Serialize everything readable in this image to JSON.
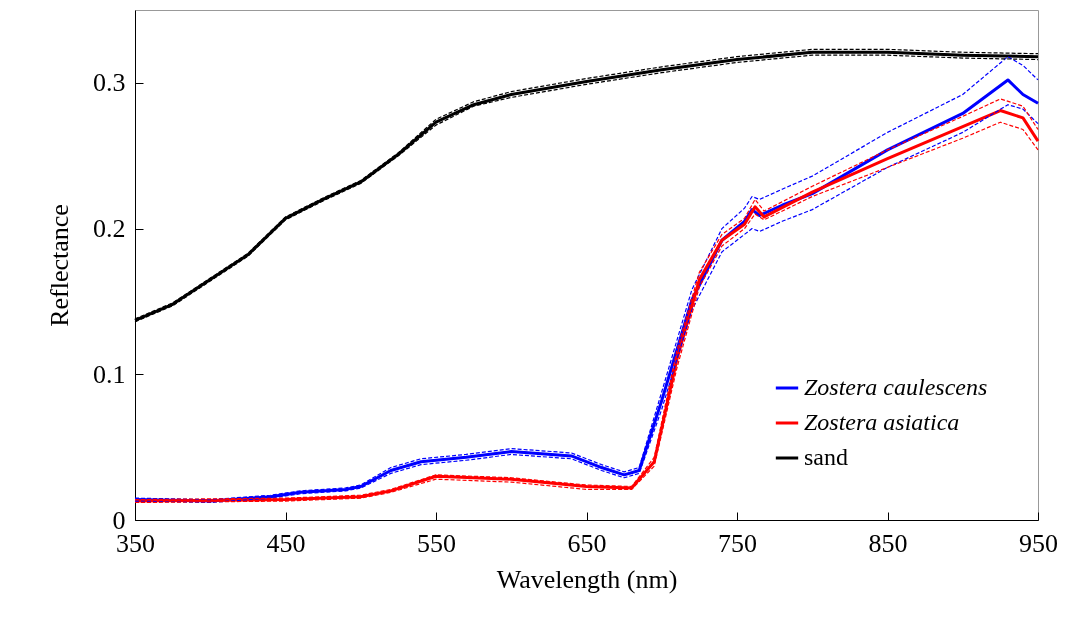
{
  "chart_data": {
    "type": "line",
    "xlabel": "Wavelength (nm)",
    "ylabel": "Reflectance",
    "xlim": [
      350,
      950
    ],
    "xticks": [
      350,
      450,
      550,
      650,
      750,
      850,
      950
    ],
    "ylim": [
      0,
      0.35
    ],
    "yticks": [
      0,
      0.1,
      0.2,
      0.3
    ],
    "grid": false,
    "legend": "bottom right",
    "marker": "none",
    "line_style": "solid",
    "series": [
      {
        "name": "Zostera caulescens",
        "color": "#0000ff",
        "x": [
          350,
          400,
          440,
          460,
          490,
          500,
          520,
          540,
          570,
          600,
          640,
          660,
          675,
          685,
          700,
          720,
          740,
          755,
          760,
          765,
          780,
          800,
          850,
          900,
          930,
          940,
          950
        ],
        "values": [
          0.014,
          0.013,
          0.016,
          0.019,
          0.021,
          0.023,
          0.034,
          0.04,
          0.043,
          0.047,
          0.044,
          0.036,
          0.031,
          0.034,
          0.082,
          0.151,
          0.192,
          0.205,
          0.213,
          0.209,
          0.216,
          0.224,
          0.254,
          0.279,
          0.302,
          0.292,
          0.286
        ]
      },
      {
        "name": "Zostera asiatica",
        "color": "#ff0000",
        "x": [
          350,
          450,
          500,
          520,
          550,
          600,
          650,
          680,
          695,
          710,
          725,
          740,
          755,
          762,
          768,
          800,
          850,
          900,
          925,
          940,
          950
        ],
        "values": [
          0.013,
          0.014,
          0.016,
          0.02,
          0.03,
          0.028,
          0.023,
          0.022,
          0.04,
          0.11,
          0.165,
          0.192,
          0.203,
          0.215,
          0.208,
          0.225,
          0.248,
          0.27,
          0.281,
          0.276,
          0.26
        ]
      },
      {
        "name": "sand",
        "color": "#000000",
        "x": [
          350,
          375,
          400,
          425,
          450,
          475,
          500,
          525,
          550,
          575,
          600,
          650,
          700,
          750,
          800,
          850,
          900,
          950
        ],
        "values": [
          0.137,
          0.148,
          0.165,
          0.182,
          0.207,
          0.22,
          0.232,
          0.251,
          0.273,
          0.285,
          0.292,
          0.301,
          0.309,
          0.316,
          0.321,
          0.321,
          0.319,
          0.318
        ]
      },
      {
        "color": "#0000ff",
        "line_style": "dashed",
        "x": [
          350,
          400,
          440,
          460,
          490,
          500,
          520,
          540,
          570,
          600,
          640,
          660,
          675,
          685,
          700,
          720,
          740,
          755,
          760,
          765,
          780,
          800,
          850,
          900,
          930,
          940,
          950
        ],
        "values": [
          0.013,
          0.012,
          0.015,
          0.018,
          0.02,
          0.022,
          0.032,
          0.038,
          0.041,
          0.045,
          0.042,
          0.034,
          0.029,
          0.032,
          0.076,
          0.144,
          0.184,
          0.196,
          0.2,
          0.198,
          0.205,
          0.213,
          0.242,
          0.266,
          0.285,
          0.282,
          0.272
        ]
      },
      {
        "color": "#0000ff",
        "line_style": "dashed",
        "x": [
          350,
          400,
          440,
          460,
          490,
          500,
          520,
          540,
          570,
          600,
          640,
          660,
          675,
          685,
          700,
          720,
          740,
          755,
          760,
          765,
          780,
          800,
          850,
          900,
          930,
          940,
          950
        ],
        "values": [
          0.015,
          0.014,
          0.017,
          0.02,
          0.022,
          0.024,
          0.036,
          0.042,
          0.045,
          0.049,
          0.046,
          0.038,
          0.033,
          0.036,
          0.088,
          0.158,
          0.2,
          0.214,
          0.222,
          0.22,
          0.227,
          0.236,
          0.266,
          0.292,
          0.318,
          0.312,
          0.302
        ]
      },
      {
        "color": "#ff0000",
        "line_style": "dashed",
        "x": [
          350,
          450,
          500,
          520,
          550,
          600,
          650,
          680,
          695,
          710,
          725,
          740,
          755,
          762,
          768,
          800,
          850,
          900,
          925,
          940,
          950
        ],
        "values": [
          0.012,
          0.013,
          0.015,
          0.019,
          0.028,
          0.026,
          0.021,
          0.021,
          0.037,
          0.104,
          0.16,
          0.188,
          0.2,
          0.21,
          0.206,
          0.222,
          0.242,
          0.262,
          0.273,
          0.268,
          0.254
        ]
      },
      {
        "color": "#ff0000",
        "line_style": "dashed",
        "x": [
          350,
          450,
          500,
          520,
          550,
          600,
          650,
          680,
          695,
          710,
          725,
          740,
          755,
          762,
          768,
          800,
          850,
          900,
          925,
          940,
          950
        ],
        "values": [
          0.014,
          0.015,
          0.017,
          0.021,
          0.031,
          0.029,
          0.024,
          0.023,
          0.043,
          0.116,
          0.17,
          0.196,
          0.207,
          0.22,
          0.212,
          0.229,
          0.254,
          0.277,
          0.289,
          0.284,
          0.268
        ]
      },
      {
        "color": "#000000",
        "line_style": "dashed",
        "x": [
          350,
          375,
          400,
          425,
          450,
          475,
          500,
          525,
          550,
          575,
          600,
          650,
          700,
          750,
          800,
          850,
          900,
          950
        ],
        "values": [
          0.136,
          0.147,
          0.164,
          0.181,
          0.206,
          0.219,
          0.231,
          0.25,
          0.271,
          0.284,
          0.29,
          0.299,
          0.307,
          0.314,
          0.319,
          0.319,
          0.317,
          0.316
        ]
      },
      {
        "color": "#000000",
        "line_style": "dashed",
        "x": [
          350,
          375,
          400,
          425,
          450,
          475,
          500,
          525,
          550,
          575,
          600,
          650,
          700,
          750,
          800,
          850,
          900,
          950
        ],
        "values": [
          0.138,
          0.149,
          0.166,
          0.183,
          0.208,
          0.221,
          0.233,
          0.252,
          0.275,
          0.287,
          0.294,
          0.303,
          0.311,
          0.318,
          0.323,
          0.323,
          0.321,
          0.32
        ]
      }
    ]
  }
}
